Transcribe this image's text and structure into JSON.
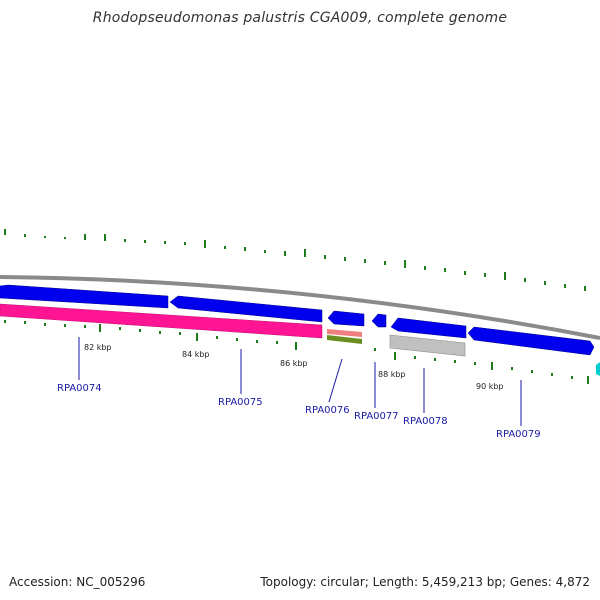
{
  "title": "Rhodopseudomonas palustris CGA009, complete genome",
  "footer": {
    "accession": "Accession: NC_005296",
    "stats": "Topology: circular; Length: 5,459,213 bp; Genes: 4,872"
  },
  "colors": {
    "backbone": "#8a8a8a",
    "forward_gene": "#0000ee",
    "reverse_gene": "#ff1493",
    "rna_gene": "#f08080",
    "other_gene": "#6b8e23",
    "pseudo_gene": "#c0c0c0",
    "gc_tick": "#1e7b1e",
    "label": "#1a1aa6"
  },
  "scale_labels": [
    "82 kbp",
    "84 kbp",
    "86 kbp",
    "88 kbp",
    "90 kbp"
  ],
  "genes": [
    {
      "label": "RPA0074"
    },
    {
      "label": "RPA0075"
    },
    {
      "label": "RPA0076"
    },
    {
      "label": "RPA0077"
    },
    {
      "label": "RPA0078"
    },
    {
      "label": "RPA0079"
    }
  ]
}
